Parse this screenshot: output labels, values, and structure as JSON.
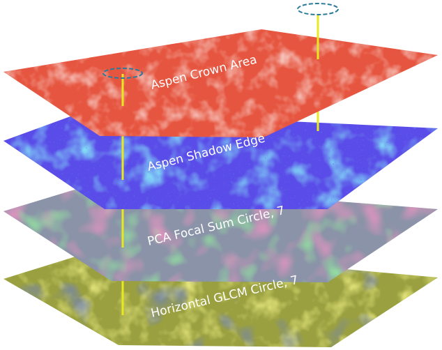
{
  "layers": [
    {
      "label": "Aspen Crown Area",
      "base_color": "#e6553f",
      "accent_colors": [
        "#f29a88",
        "#d8412c",
        "#f7c2b6"
      ]
    },
    {
      "label": "Aspen Shadow Edge",
      "base_color": "#5a4ce8",
      "accent_colors": [
        "#3fe0f0",
        "#8a7bf2",
        "#2233c8"
      ]
    },
    {
      "label": "PCA Focal Sum Circle, 7",
      "base_color": "#8a93a8",
      "accent_colors": [
        "#e0508a",
        "#4ed05a",
        "#3a58d8",
        "#c8b8d8"
      ]
    },
    {
      "label": "Horizontal GLCM Circle, 7",
      "base_color": "#9aa040",
      "accent_colors": [
        "#e8e840",
        "#1f2fc0",
        "#6a7028"
      ]
    }
  ],
  "connector_color": "#e8e820",
  "marker_color": "#2a7a9a"
}
